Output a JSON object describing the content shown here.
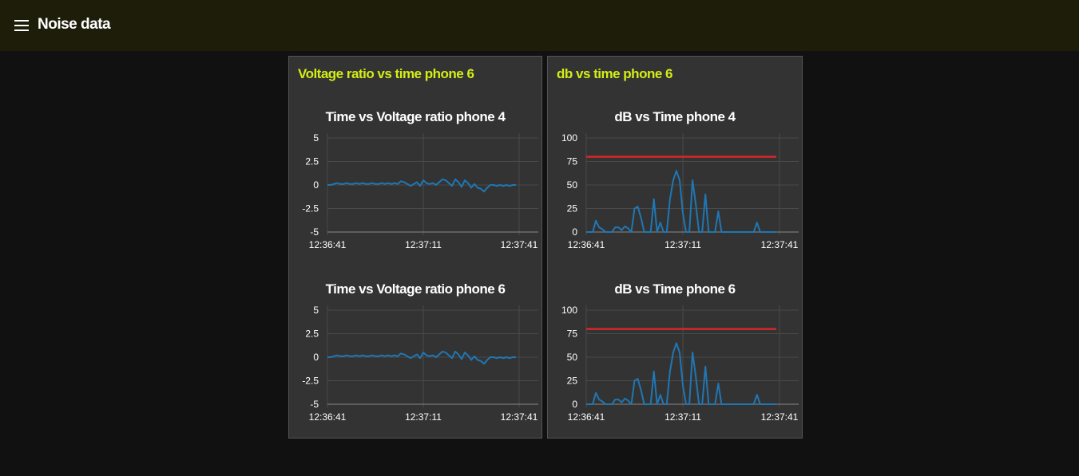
{
  "app": {
    "title": "Noise data",
    "menu_icon": "hamburger-menu-icon"
  },
  "colors": {
    "header_bg": "#1e1d09",
    "group_title": "#d4ee14",
    "series": "#1f77b4",
    "threshold": "#d62728"
  },
  "groups": [
    {
      "title": "Voltage ratio vs time phone 6"
    },
    {
      "title": "db vs time phone 6"
    }
  ],
  "chart_data": [
    {
      "type": "line",
      "title": "Time vs Voltage ratio phone 4",
      "xlabel": "",
      "ylabel": "",
      "x_ticks": [
        "12:36:41",
        "12:37:11",
        "12:37:41"
      ],
      "x_range": [
        "12:36:41",
        "12:37:41"
      ],
      "ylim": [
        -5,
        5
      ],
      "y_ticks": [
        "5",
        "2.5",
        "0",
        "-2.5",
        "-5"
      ],
      "y_tick_values": [
        5,
        2.5,
        0,
        -2.5,
        -5
      ],
      "grid": true,
      "series": [
        {
          "x": [
            0,
            1,
            2,
            3,
            4,
            5,
            6,
            7,
            8,
            9,
            10,
            11,
            12,
            13,
            14,
            15,
            16,
            17,
            18,
            19,
            20,
            21,
            22,
            23,
            24,
            25,
            26,
            27,
            28,
            29,
            30,
            31,
            32,
            33,
            34,
            35,
            36,
            37,
            38,
            39,
            40,
            41,
            42,
            43,
            44,
            45,
            46,
            47,
            48,
            49,
            50,
            51,
            52,
            53,
            54,
            55,
            56,
            57,
            58,
            59
          ],
          "values": [
            0,
            0,
            0.1,
            0.2,
            0.1,
            0.1,
            0.2,
            0.1,
            0.1,
            0.2,
            0.1,
            0.2,
            0.1,
            0.1,
            0.2,
            0.1,
            0.1,
            0.2,
            0.1,
            0.2,
            0.1,
            0.2,
            0.1,
            0.4,
            0.3,
            0.1,
            -0.1,
            0.1,
            0.3,
            -0.1,
            0.5,
            0.2,
            0.1,
            0.2,
            0,
            0.3,
            0.6,
            0.5,
            0.2,
            -0.1,
            0.6,
            0.3,
            -0.2,
            0.5,
            0.2,
            -0.3,
            0.1,
            -0.3,
            -0.4,
            -0.7,
            -0.3,
            0,
            0,
            -0.1,
            0,
            -0.1,
            0,
            -0.1,
            0,
            0
          ]
        }
      ]
    },
    {
      "type": "line",
      "title": "dB vs Time phone 4",
      "xlabel": "",
      "ylabel": "",
      "x_ticks": [
        "12:36:41",
        "12:37:11",
        "12:37:41"
      ],
      "x_range": [
        "12:36:41",
        "12:37:41"
      ],
      "ylim": [
        0,
        100
      ],
      "y_ticks": [
        "100",
        "75",
        "50",
        "25",
        "0"
      ],
      "y_tick_values": [
        100,
        75,
        50,
        25,
        0
      ],
      "grid": true,
      "series": [
        {
          "x": [
            0,
            1,
            2,
            3,
            4,
            5,
            6,
            7,
            8,
            9,
            10,
            11,
            12,
            13,
            14,
            15,
            16,
            17,
            18,
            19,
            20,
            21,
            22,
            23,
            24,
            25,
            26,
            27,
            28,
            29,
            30,
            31,
            32,
            33,
            34,
            35,
            36,
            37,
            38,
            39,
            40,
            41,
            42,
            43,
            44,
            45,
            46,
            47,
            48,
            49,
            50,
            51,
            52,
            53,
            54,
            55,
            56,
            57,
            58,
            59
          ],
          "values": [
            0,
            0,
            0,
            12,
            5,
            3,
            0,
            0,
            0,
            5,
            5,
            2,
            6,
            4,
            0,
            25,
            27,
            15,
            0,
            0,
            0,
            35,
            0,
            10,
            0,
            0,
            35,
            55,
            65,
            55,
            20,
            0,
            0,
            55,
            30,
            0,
            0,
            40,
            0,
            0,
            0,
            22,
            0,
            0,
            0,
            0,
            0,
            0,
            0,
            0,
            0,
            0,
            0,
            10,
            0,
            0,
            0,
            0,
            0,
            0
          ]
        },
        {
          "x": [
            0,
            59
          ],
          "values": [
            80,
            80
          ]
        }
      ]
    },
    {
      "type": "line",
      "title": "Time vs Voltage ratio phone 6",
      "xlabel": "",
      "ylabel": "",
      "x_ticks": [
        "12:36:41",
        "12:37:11",
        "12:37:41"
      ],
      "x_range": [
        "12:36:41",
        "12:37:41"
      ],
      "ylim": [
        -5,
        5
      ],
      "y_ticks": [
        "5",
        "2.5",
        "0",
        "-2.5",
        "-5"
      ],
      "y_tick_values": [
        5,
        2.5,
        0,
        -2.5,
        -5
      ],
      "grid": true,
      "series": [
        {
          "x": [
            0,
            1,
            2,
            3,
            4,
            5,
            6,
            7,
            8,
            9,
            10,
            11,
            12,
            13,
            14,
            15,
            16,
            17,
            18,
            19,
            20,
            21,
            22,
            23,
            24,
            25,
            26,
            27,
            28,
            29,
            30,
            31,
            32,
            33,
            34,
            35,
            36,
            37,
            38,
            39,
            40,
            41,
            42,
            43,
            44,
            45,
            46,
            47,
            48,
            49,
            50,
            51,
            52,
            53,
            54,
            55,
            56,
            57,
            58,
            59
          ],
          "values": [
            0,
            0,
            0.1,
            0.2,
            0.1,
            0.1,
            0.2,
            0.1,
            0.1,
            0.2,
            0.1,
            0.2,
            0.1,
            0.1,
            0.2,
            0.1,
            0.1,
            0.2,
            0.1,
            0.2,
            0.1,
            0.2,
            0.1,
            0.4,
            0.3,
            0.1,
            -0.1,
            0.1,
            0.3,
            -0.1,
            0.5,
            0.2,
            0.1,
            0.2,
            0,
            0.3,
            0.6,
            0.5,
            0.2,
            -0.1,
            0.6,
            0.3,
            -0.2,
            0.5,
            0.2,
            -0.3,
            0.1,
            -0.3,
            -0.4,
            -0.7,
            -0.3,
            0,
            0,
            -0.1,
            0,
            -0.1,
            0,
            -0.1,
            0,
            0
          ]
        }
      ]
    },
    {
      "type": "line",
      "title": "dB vs Time phone 6",
      "xlabel": "",
      "ylabel": "",
      "x_ticks": [
        "12:36:41",
        "12:37:11",
        "12:37:41"
      ],
      "x_range": [
        "12:36:41",
        "12:37:41"
      ],
      "ylim": [
        0,
        100
      ],
      "y_ticks": [
        "100",
        "75",
        "50",
        "25",
        "0"
      ],
      "y_tick_values": [
        100,
        75,
        50,
        25,
        0
      ],
      "grid": true,
      "series": [
        {
          "x": [
            0,
            1,
            2,
            3,
            4,
            5,
            6,
            7,
            8,
            9,
            10,
            11,
            12,
            13,
            14,
            15,
            16,
            17,
            18,
            19,
            20,
            21,
            22,
            23,
            24,
            25,
            26,
            27,
            28,
            29,
            30,
            31,
            32,
            33,
            34,
            35,
            36,
            37,
            38,
            39,
            40,
            41,
            42,
            43,
            44,
            45,
            46,
            47,
            48,
            49,
            50,
            51,
            52,
            53,
            54,
            55,
            56,
            57,
            58,
            59
          ],
          "values": [
            0,
            0,
            0,
            12,
            5,
            3,
            0,
            0,
            0,
            5,
            5,
            2,
            6,
            4,
            0,
            25,
            27,
            15,
            0,
            0,
            0,
            35,
            0,
            10,
            0,
            0,
            35,
            55,
            65,
            55,
            20,
            0,
            0,
            55,
            30,
            0,
            0,
            40,
            0,
            0,
            0,
            22,
            0,
            0,
            0,
            0,
            0,
            0,
            0,
            0,
            0,
            0,
            0,
            10,
            0,
            0,
            0,
            0,
            0,
            0
          ]
        },
        {
          "x": [
            0,
            59
          ],
          "values": [
            80,
            80
          ]
        }
      ]
    }
  ]
}
